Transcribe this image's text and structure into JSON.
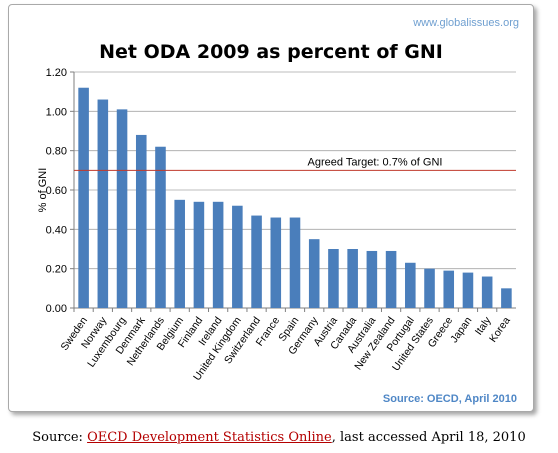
{
  "watermark": "www.globalissues.org",
  "source_note": "Source: OECD, April 2010",
  "caption": {
    "prefix": "Source: ",
    "link_text": "OECD Development Statistics Online",
    "suffix": ", last accessed April 18, 2010"
  },
  "colors": {
    "bar": "#4a7ebb",
    "target_line": "#c0392b",
    "grid": "#a6a6a6"
  },
  "chart_data": {
    "type": "bar",
    "title": "Net ODA 2009 as percent of GNI",
    "xlabel": "",
    "ylabel": "% of GNI",
    "ylim": [
      0,
      1.2
    ],
    "yticks": [
      "0.00",
      "0.20",
      "0.40",
      "0.60",
      "0.80",
      "1.00",
      "1.20"
    ],
    "grid": true,
    "categories": [
      "Sweden",
      "Norway",
      "Luxembourg",
      "Denmark",
      "Netherlands",
      "Belgium",
      "Finland",
      "Ireland",
      "United Kingdom",
      "Switzerland",
      "France",
      "Spain",
      "Germany",
      "Austria",
      "Canada",
      "Australia",
      "New Zealand",
      "Portugal",
      "United States",
      "Greece",
      "Japan",
      "Italy",
      "Korea"
    ],
    "values": [
      1.12,
      1.06,
      1.01,
      0.88,
      0.82,
      0.55,
      0.54,
      0.54,
      0.52,
      0.47,
      0.46,
      0.46,
      0.35,
      0.3,
      0.3,
      0.29,
      0.29,
      0.23,
      0.2,
      0.19,
      0.18,
      0.16,
      0.1
    ],
    "reference_line": {
      "value": 0.7,
      "label": "Agreed Target: 0.7% of GNI"
    }
  }
}
